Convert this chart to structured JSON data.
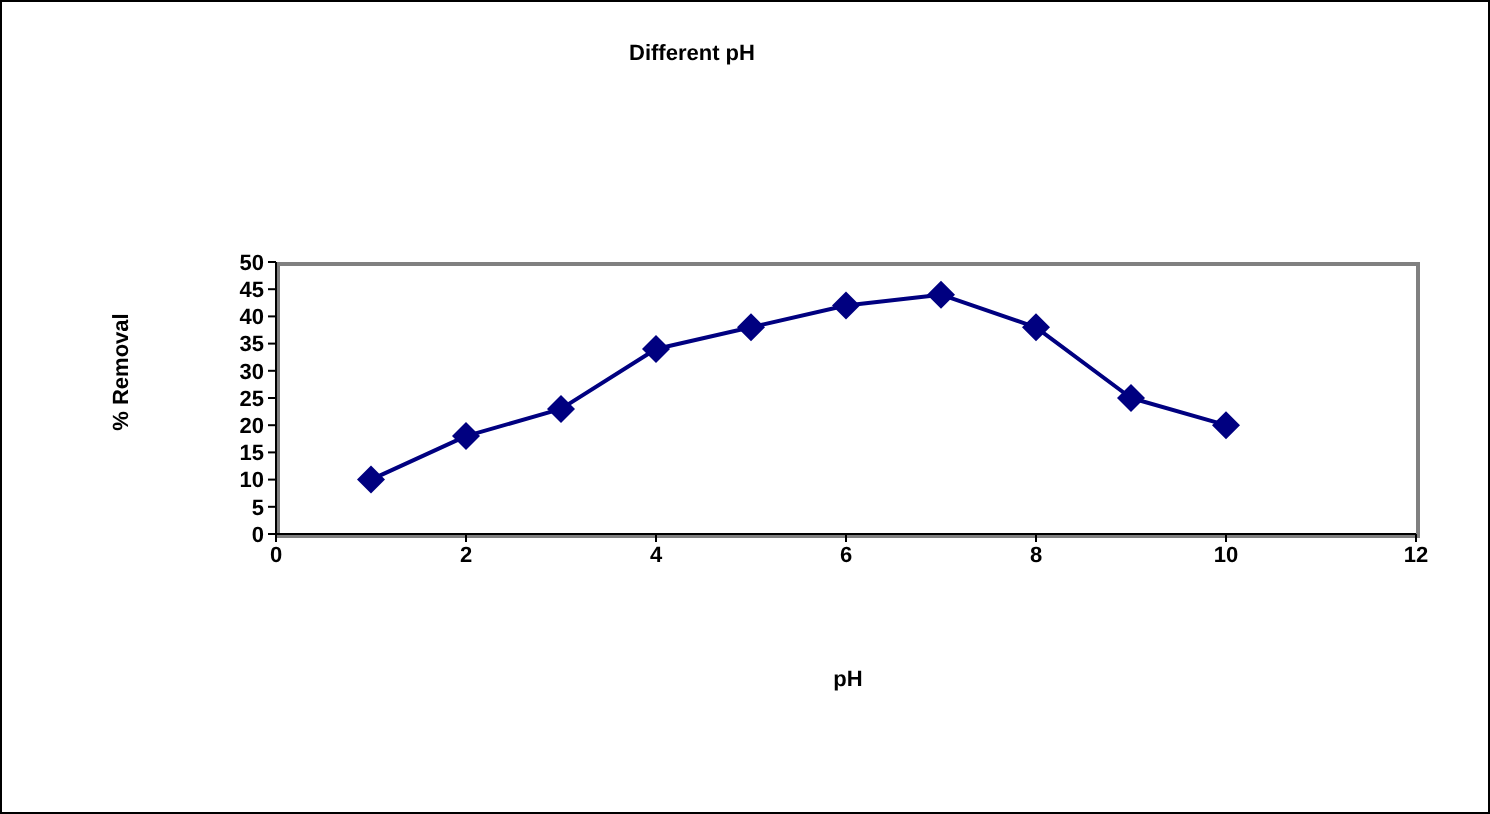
{
  "chart_data": {
    "type": "line",
    "title": "Different pH",
    "xlabel": "pH",
    "ylabel": "% Removal",
    "x": [
      1,
      2,
      3,
      4,
      5,
      6,
      7,
      8,
      9,
      10
    ],
    "series": [
      {
        "color": "#000080",
        "values": [
          10,
          18,
          23,
          34,
          38,
          42,
          44,
          38,
          25,
          20
        ]
      }
    ],
    "xlim": [
      0,
      12
    ],
    "xticks": [
      0,
      2,
      4,
      6,
      8,
      10,
      12
    ],
    "ylim": [
      0,
      50
    ],
    "yticks": [
      0,
      5,
      10,
      15,
      20,
      25,
      30,
      35,
      40,
      45,
      50
    ],
    "grid": false,
    "legend": false,
    "marker": "diamond",
    "line_style": "solid"
  }
}
